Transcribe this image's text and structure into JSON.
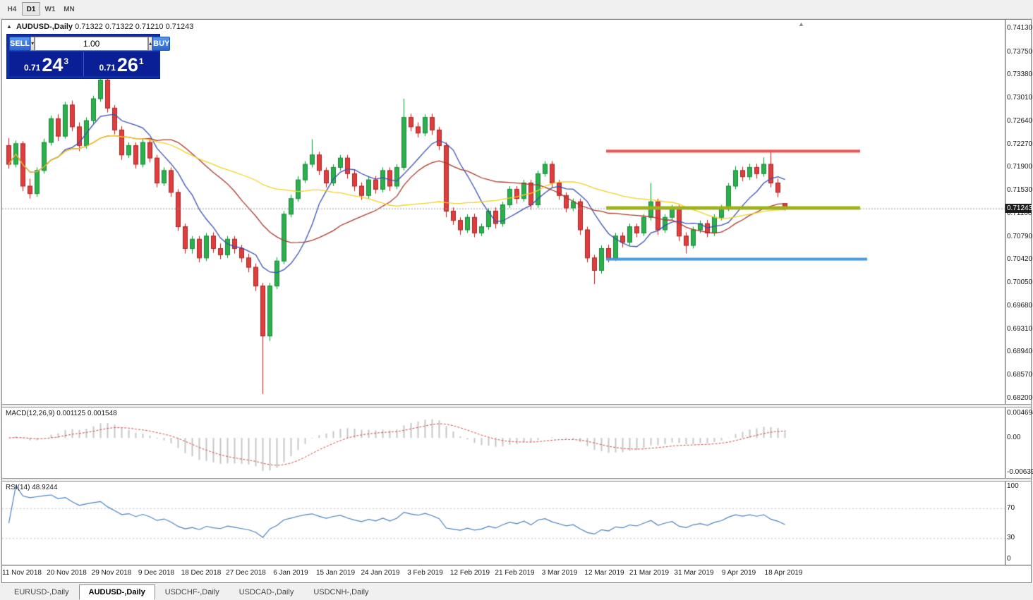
{
  "toolbar": {
    "timeframes": [
      {
        "label": "H4",
        "active": false
      },
      {
        "label": "D1",
        "active": true
      },
      {
        "label": "W1",
        "active": false
      },
      {
        "label": "MN",
        "active": false
      }
    ]
  },
  "chart": {
    "symbol_title": "AUDUSD-,Daily",
    "ohlc_text": "0.71322 0.71322 0.71210 0.71243"
  },
  "one_click": {
    "sell_label": "SELL",
    "buy_label": "BUY",
    "volume": "1.00",
    "sell_price_small": "0.71",
    "sell_price_big": "24",
    "sell_price_sup": "3",
    "buy_price_small": "0.71",
    "buy_price_big": "26",
    "buy_price_sup": "1"
  },
  "chart_data": [
    {
      "id": "price",
      "type": "candlestick",
      "title": "AUDUSD-,Daily",
      "y_range": [
        0.682,
        0.7413
      ],
      "y_ticks": [
        "0.74130",
        "0.73750",
        "0.73380",
        "0.73010",
        "0.72640",
        "0.72270",
        "0.71900",
        "0.71530",
        "0.71160",
        "0.70790",
        "0.70420",
        "0.70050",
        "0.69680",
        "0.69310",
        "0.68940",
        "0.68570",
        "0.68200"
      ],
      "current_price": 0.71243,
      "current_price_label": "0.71243",
      "bull_color": "#2bb14c",
      "bull_border": "#128a36",
      "bear_color": "#e23d3d",
      "bear_border": "#a82222",
      "moving_averages": [
        {
          "name": "ma-fast-blue",
          "period": 8,
          "color": "#3a4fb5"
        },
        {
          "name": "ma-mid-firebrick",
          "period": 20,
          "color": "#a83a2e"
        },
        {
          "name": "ma-slow-yellow",
          "period": 40,
          "color": "#f2d21f"
        }
      ],
      "hlines": [
        {
          "name": "resistance-line",
          "price": 0.7216,
          "from": 85,
          "to": 121,
          "color": "#ef5350",
          "width": 4
        },
        {
          "name": "pivot-line",
          "price": 0.7125,
          "from": 85,
          "to": 121,
          "color": "#9fb410",
          "width": 5
        },
        {
          "name": "support-line",
          "price": 0.7043,
          "from": 85,
          "to": 122,
          "color": "#4a98d8",
          "width": 4
        }
      ],
      "x_labels": [
        "11 Nov 2018",
        "20 Nov 2018",
        "29 Nov 2018",
        "9 Dec 2018",
        "18 Dec 2018",
        "27 Dec 2018",
        "6 Jan 2019",
        "15 Jan 2019",
        "24 Jan 2019",
        "3 Feb 2019",
        "12 Feb 2019",
        "21 Feb 2019",
        "3 Mar 2019",
        "12 Mar 2019",
        "21 Mar 2019",
        "31 Mar 2019",
        "9 Apr 2019",
        "18 Apr 2019"
      ],
      "candles": [
        [
          0.7225,
          0.7237,
          0.7188,
          0.7195
        ],
        [
          0.7195,
          0.7233,
          0.719,
          0.7228
        ],
        [
          0.7228,
          0.7232,
          0.7152,
          0.716
        ],
        [
          0.716,
          0.7172,
          0.714,
          0.7148
        ],
        [
          0.7148,
          0.719,
          0.7143,
          0.7185
        ],
        [
          0.7185,
          0.7236,
          0.718,
          0.723
        ],
        [
          0.723,
          0.7273,
          0.7225,
          0.7268
        ],
        [
          0.7268,
          0.7275,
          0.7232,
          0.724
        ],
        [
          0.724,
          0.7295,
          0.7236,
          0.729
        ],
        [
          0.729,
          0.7297,
          0.7248,
          0.7255
        ],
        [
          0.7255,
          0.7262,
          0.7216,
          0.7225
        ],
        [
          0.7225,
          0.727,
          0.722,
          0.7265
        ],
        [
          0.7265,
          0.7305,
          0.726,
          0.73
        ],
        [
          0.73,
          0.734,
          0.7295,
          0.733
        ],
        [
          0.733,
          0.7336,
          0.7278,
          0.7285
        ],
        [
          0.7285,
          0.729,
          0.7243,
          0.725
        ],
        [
          0.725,
          0.7256,
          0.7202,
          0.721
        ],
        [
          0.721,
          0.723,
          0.7205,
          0.7225
        ],
        [
          0.7225,
          0.723,
          0.7188,
          0.7195
        ],
        [
          0.7195,
          0.7235,
          0.719,
          0.723
        ],
        [
          0.723,
          0.7236,
          0.7198,
          0.7205
        ],
        [
          0.7205,
          0.721,
          0.7158,
          0.7165
        ],
        [
          0.7165,
          0.719,
          0.716,
          0.7185
        ],
        [
          0.7185,
          0.719,
          0.7143,
          0.715
        ],
        [
          0.715,
          0.7155,
          0.7088,
          0.7095
        ],
        [
          0.7095,
          0.71,
          0.7052,
          0.706
        ],
        [
          0.706,
          0.708,
          0.7052,
          0.7075
        ],
        [
          0.7075,
          0.708,
          0.7038,
          0.7045
        ],
        [
          0.7045,
          0.7085,
          0.704,
          0.708
        ],
        [
          0.708,
          0.7086,
          0.7053,
          0.706
        ],
        [
          0.706,
          0.7068,
          0.7043,
          0.705
        ],
        [
          0.705,
          0.708,
          0.7045,
          0.7075
        ],
        [
          0.7075,
          0.708,
          0.7052,
          0.706
        ],
        [
          0.706,
          0.7066,
          0.7038,
          0.7045
        ],
        [
          0.7045,
          0.7052,
          0.7022,
          0.703
        ],
        [
          0.703,
          0.7036,
          0.6992,
          0.7
        ],
        [
          0.7,
          0.7005,
          0.6827,
          0.692
        ],
        [
          0.692,
          0.7005,
          0.6912,
          0.7
        ],
        [
          0.7,
          0.7046,
          0.6995,
          0.704
        ],
        [
          0.704,
          0.712,
          0.7035,
          0.7115
        ],
        [
          0.7115,
          0.7146,
          0.711,
          0.714
        ],
        [
          0.714,
          0.7176,
          0.7135,
          0.717
        ],
        [
          0.717,
          0.72,
          0.7165,
          0.7195
        ],
        [
          0.7195,
          0.7235,
          0.719,
          0.721
        ],
        [
          0.721,
          0.7215,
          0.7178,
          0.7185
        ],
        [
          0.7185,
          0.719,
          0.7158,
          0.7165
        ],
        [
          0.7165,
          0.7195,
          0.716,
          0.719
        ],
        [
          0.719,
          0.721,
          0.7185,
          0.7205
        ],
        [
          0.7205,
          0.721,
          0.7172,
          0.718
        ],
        [
          0.718,
          0.7186,
          0.7152,
          0.716
        ],
        [
          0.716,
          0.7166,
          0.7138,
          0.7145
        ],
        [
          0.7145,
          0.7175,
          0.714,
          0.717
        ],
        [
          0.717,
          0.7176,
          0.7148,
          0.7155
        ],
        [
          0.7155,
          0.719,
          0.715,
          0.7185
        ],
        [
          0.7185,
          0.719,
          0.7152,
          0.716
        ],
        [
          0.716,
          0.7195,
          0.7155,
          0.719
        ],
        [
          0.719,
          0.73,
          0.7185,
          0.727
        ],
        [
          0.727,
          0.7276,
          0.7248,
          0.7255
        ],
        [
          0.7255,
          0.7262,
          0.7238,
          0.7245
        ],
        [
          0.7245,
          0.7275,
          0.724,
          0.727
        ],
        [
          0.727,
          0.7276,
          0.7242,
          0.725
        ],
        [
          0.725,
          0.7255,
          0.7218,
          0.7225
        ],
        [
          0.7225,
          0.723,
          0.711,
          0.712
        ],
        [
          0.712,
          0.7126,
          0.7098,
          0.7105
        ],
        [
          0.7105,
          0.711,
          0.7082,
          0.709
        ],
        [
          0.709,
          0.7115,
          0.7085,
          0.711
        ],
        [
          0.711,
          0.7116,
          0.7078,
          0.7085
        ],
        [
          0.7085,
          0.71,
          0.708,
          0.7095
        ],
        [
          0.7095,
          0.7125,
          0.709,
          0.712
        ],
        [
          0.712,
          0.7126,
          0.7092,
          0.71
        ],
        [
          0.71,
          0.7135,
          0.7095,
          0.713
        ],
        [
          0.713,
          0.716,
          0.7125,
          0.7155
        ],
        [
          0.7155,
          0.716,
          0.7132,
          0.714
        ],
        [
          0.714,
          0.717,
          0.7135,
          0.7165
        ],
        [
          0.7165,
          0.717,
          0.7122,
          0.713
        ],
        [
          0.713,
          0.7185,
          0.7125,
          0.718
        ],
        [
          0.718,
          0.72,
          0.7175,
          0.7195
        ],
        [
          0.7195,
          0.72,
          0.7158,
          0.7165
        ],
        [
          0.7165,
          0.717,
          0.7138,
          0.7145
        ],
        [
          0.7145,
          0.715,
          0.7118,
          0.7125
        ],
        [
          0.7125,
          0.714,
          0.712,
          0.7135
        ],
        [
          0.7135,
          0.714,
          0.7082,
          0.709
        ],
        [
          0.709,
          0.7095,
          0.7038,
          0.7045
        ],
        [
          0.7045,
          0.705,
          0.7003,
          0.7025
        ],
        [
          0.7025,
          0.7065,
          0.702,
          0.706
        ],
        [
          0.706,
          0.7066,
          0.7038,
          0.7045
        ],
        [
          0.7045,
          0.7085,
          0.704,
          0.708
        ],
        [
          0.708,
          0.7086,
          0.7062,
          0.707
        ],
        [
          0.707,
          0.71,
          0.7065,
          0.7095
        ],
        [
          0.7095,
          0.71,
          0.7078,
          0.7085
        ],
        [
          0.7085,
          0.7115,
          0.708,
          0.711
        ],
        [
          0.711,
          0.7165,
          0.7105,
          0.7135
        ],
        [
          0.7135,
          0.714,
          0.7082,
          0.709
        ],
        [
          0.709,
          0.7115,
          0.7085,
          0.711
        ],
        [
          0.711,
          0.713,
          0.7105,
          0.7125
        ],
        [
          0.7125,
          0.713,
          0.7072,
          0.708
        ],
        [
          0.708,
          0.7086,
          0.7052,
          0.7065
        ],
        [
          0.7065,
          0.7095,
          0.706,
          0.709
        ],
        [
          0.709,
          0.7105,
          0.7085,
          0.71
        ],
        [
          0.71,
          0.7106,
          0.7078,
          0.7085
        ],
        [
          0.7085,
          0.7115,
          0.708,
          0.711
        ],
        [
          0.711,
          0.713,
          0.7105,
          0.7125
        ],
        [
          0.7125,
          0.7165,
          0.712,
          0.716
        ],
        [
          0.716,
          0.7192,
          0.7155,
          0.7185
        ],
        [
          0.7185,
          0.7191,
          0.7168,
          0.7175
        ],
        [
          0.7175,
          0.7196,
          0.717,
          0.719
        ],
        [
          0.719,
          0.7196,
          0.7172,
          0.718
        ],
        [
          0.718,
          0.7206,
          0.7175,
          0.7195
        ],
        [
          0.7195,
          0.7218,
          0.7158,
          0.7165
        ],
        [
          0.7165,
          0.7172,
          0.7142,
          0.715
        ],
        [
          0.71322,
          0.71322,
          0.7121,
          0.71243
        ]
      ]
    },
    {
      "id": "macd",
      "type": "macd",
      "label": "MACD(12,26,9) 0.001125 0.001548",
      "params": [
        12,
        26,
        9
      ],
      "current_macd": 0.001125,
      "current_signal": 0.001548,
      "axis_labels": [
        "0.004694",
        "0.00",
        "-0.006394"
      ],
      "histogram_color": "#c6c6c6",
      "signal_color": "#cf4b4b"
    },
    {
      "id": "rsi",
      "type": "line",
      "label": "RSI(14) 48.9244",
      "period": 14,
      "current_value": 48.9244,
      "axis_labels": [
        "100",
        "70",
        "30",
        "0"
      ],
      "levels": [
        70,
        30
      ],
      "line_color": "#4a80c0"
    }
  ],
  "tabs": [
    {
      "label": "EURUSD-,Daily",
      "active": false
    },
    {
      "label": "AUDUSD-,Daily",
      "active": true
    },
    {
      "label": "USDCHF-,Daily",
      "active": false
    },
    {
      "label": "USDCAD-,Daily",
      "active": false
    },
    {
      "label": "USDCNH-,Daily",
      "active": false
    }
  ]
}
